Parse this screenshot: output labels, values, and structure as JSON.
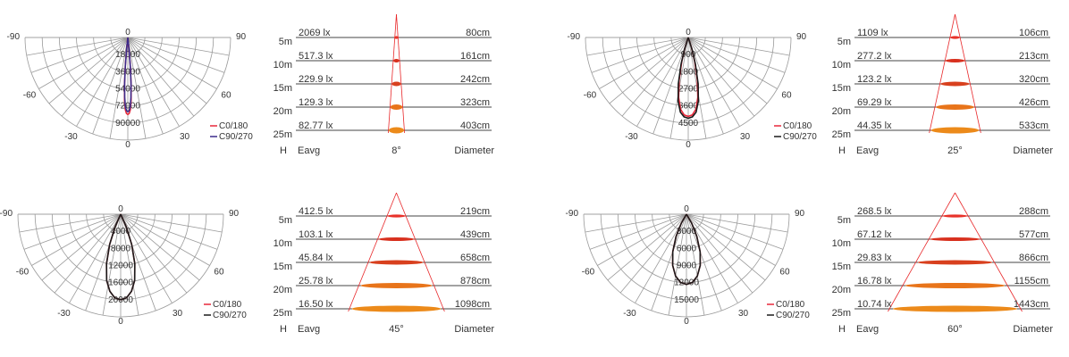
{
  "colors": {
    "grid": "#9a9a9a",
    "text": "#333333",
    "c0_180": "#e8283a",
    "c90_270_a": "#3a2a8a",
    "c90_270_b": "#1a1a1a",
    "cone": "#e8282a",
    "beam_shades": [
      "#e8322a",
      "#d8301e",
      "#d8401e",
      "#e8741a",
      "#ec8a1a"
    ]
  },
  "chart_data": [
    {
      "type": "polar",
      "angle_ticks": [
        "0",
        "30",
        "60",
        "90",
        "-30",
        "-60",
        "-90"
      ],
      "radial_ticks": [
        "18000",
        "36000",
        "54000",
        "72000",
        "90000"
      ],
      "radial_max": 90000,
      "legend": [
        "C0/180",
        "C90/270"
      ],
      "series": [
        {
          "name": "C0/180",
          "color": "#e8283a",
          "points": [
            [
              0,
              81000
            ],
            [
              1,
              80000
            ],
            [
              2,
              76000
            ],
            [
              3,
              66000
            ],
            [
              4,
              50000
            ],
            [
              5,
              30000
            ],
            [
              6,
              12000
            ],
            [
              8,
              0
            ]
          ]
        },
        {
          "name": "C90/270",
          "color": "#3a2a8a",
          "points": [
            [
              0,
              78000
            ],
            [
              1,
              77000
            ],
            [
              2,
              73000
            ],
            [
              3,
              63000
            ],
            [
              4,
              48000
            ],
            [
              5,
              29000
            ],
            [
              6,
              11000
            ],
            [
              8,
              0
            ]
          ]
        }
      ]
    },
    {
      "type": "table",
      "rows": [
        {
          "h": "5m",
          "eavg": "2069 lx",
          "diameter": "80cm"
        },
        {
          "h": "10m",
          "eavg": "517.3 lx",
          "diameter": "161cm"
        },
        {
          "h": "15m",
          "eavg": "229.9 lx",
          "diameter": "242cm"
        },
        {
          "h": "20m",
          "eavg": "129.3 lx",
          "diameter": "323cm"
        },
        {
          "h": "25m",
          "eavg": "82.77 lx",
          "diameter": "403cm"
        }
      ],
      "header": {
        "h": "H",
        "eavg": "Eavg",
        "angle": "8°",
        "diameter": "Diameter"
      },
      "beam_angle": 8
    },
    {
      "type": "polar",
      "angle_ticks": [
        "0",
        "30",
        "60",
        "90",
        "-30",
        "-60",
        "-90"
      ],
      "radial_ticks": [
        "900",
        "1800",
        "2700",
        "3600",
        "4500"
      ],
      "radial_max": 4500,
      "legend": [
        "C0/180",
        "C90/270"
      ],
      "series": [
        {
          "name": "C0/180",
          "color": "#e8283a",
          "points": [
            [
              0,
              4150
            ],
            [
              3,
              4080
            ],
            [
              6,
              3800
            ],
            [
              9,
              3200
            ],
            [
              12,
              2300
            ],
            [
              15,
              1300
            ],
            [
              18,
              500
            ],
            [
              22,
              0
            ]
          ]
        },
        {
          "name": "C90/270",
          "color": "#1a1a1a",
          "points": [
            [
              0,
              4250
            ],
            [
              3,
              4180
            ],
            [
              6,
              3950
            ],
            [
              9,
              3400
            ],
            [
              12,
              2500
            ],
            [
              15,
              1450
            ],
            [
              18,
              600
            ],
            [
              22,
              0
            ]
          ]
        }
      ]
    },
    {
      "type": "table",
      "rows": [
        {
          "h": "5m",
          "eavg": "1109 lx",
          "diameter": "106cm"
        },
        {
          "h": "10m",
          "eavg": "277.2 lx",
          "diameter": "213cm"
        },
        {
          "h": "15m",
          "eavg": "123.2 lx",
          "diameter": "320cm"
        },
        {
          "h": "20m",
          "eavg": "69.29 lx",
          "diameter": "426cm"
        },
        {
          "h": "25m",
          "eavg": "44.35 lx",
          "diameter": "533cm"
        }
      ],
      "header": {
        "h": "H",
        "eavg": "Eavg",
        "angle": "25°",
        "diameter": "Diameter"
      },
      "beam_angle": 25
    },
    {
      "type": "polar",
      "angle_ticks": [
        "0",
        "30",
        "60",
        "90",
        "-30",
        "-60",
        "-90"
      ],
      "radial_ticks": [
        "4000",
        "8000",
        "12000",
        "16000",
        "20000"
      ],
      "radial_max": 20000,
      "legend": [
        "C0/180",
        "C90/270"
      ],
      "series": [
        {
          "name": "C0/180",
          "color": "#e8283a",
          "points": [
            [
              0,
              20000
            ],
            [
              4,
              19600
            ],
            [
              8,
              18200
            ],
            [
              12,
              15800
            ],
            [
              16,
              12000
            ],
            [
              20,
              7500
            ],
            [
              24,
              3200
            ],
            [
              30,
              0
            ]
          ]
        },
        {
          "name": "C90/270",
          "color": "#1a1a1a",
          "points": [
            [
              0,
              20000
            ],
            [
              4,
              19600
            ],
            [
              8,
              18200
            ],
            [
              12,
              15800
            ],
            [
              16,
              12000
            ],
            [
              20,
              7500
            ],
            [
              24,
              3200
            ],
            [
              30,
              0
            ]
          ]
        }
      ]
    },
    {
      "type": "table",
      "rows": [
        {
          "h": "5m",
          "eavg": "412.5 lx",
          "diameter": "219cm"
        },
        {
          "h": "10m",
          "eavg": "103.1 lx",
          "diameter": "439cm"
        },
        {
          "h": "15m",
          "eavg": "45.84 lx",
          "diameter": "658cm"
        },
        {
          "h": "20m",
          "eavg": "25.78 lx",
          "diameter": "878cm"
        },
        {
          "h": "25m",
          "eavg": "16.50 lx",
          "diameter": "1098cm"
        }
      ],
      "header": {
        "h": "H",
        "eavg": "Eavg",
        "angle": "45°",
        "diameter": "Diameter"
      },
      "beam_angle": 45
    },
    {
      "type": "polar",
      "angle_ticks": [
        "0",
        "30",
        "60",
        "90",
        "-30",
        "-60",
        "-90"
      ],
      "radial_ticks": [
        "3000",
        "6000",
        "9000",
        "12000",
        "15000"
      ],
      "radial_max": 15000,
      "legend": [
        "C0/180",
        "C90/270"
      ],
      "series": [
        {
          "name": "C0/180",
          "color": "#e8283a",
          "points": [
            [
              0,
              12300
            ],
            [
              5,
              12000
            ],
            [
              10,
              11000
            ],
            [
              15,
              9300
            ],
            [
              20,
              7000
            ],
            [
              25,
              4300
            ],
            [
              30,
              1800
            ],
            [
              36,
              0
            ]
          ]
        },
        {
          "name": "C90/270",
          "color": "#1a1a1a",
          "points": [
            [
              0,
              12300
            ],
            [
              5,
              12000
            ],
            [
              10,
              11000
            ],
            [
              15,
              9300
            ],
            [
              20,
              7000
            ],
            [
              25,
              4300
            ],
            [
              30,
              1800
            ],
            [
              36,
              0
            ]
          ]
        }
      ]
    },
    {
      "type": "table",
      "rows": [
        {
          "h": "5m",
          "eavg": "268.5 lx",
          "diameter": "288cm"
        },
        {
          "h": "10m",
          "eavg": "67.12 lx",
          "diameter": "577cm"
        },
        {
          "h": "15m",
          "eavg": "29.83 lx",
          "diameter": "866cm"
        },
        {
          "h": "20m",
          "eavg": "16.78 lx",
          "diameter": "1155cm"
        },
        {
          "h": "25m",
          "eavg": "10.74 lx",
          "diameter": "1443cm"
        }
      ],
      "header": {
        "h": "H",
        "eavg": "Eavg",
        "angle": "60°",
        "diameter": "Diameter"
      },
      "beam_angle": 60
    }
  ]
}
